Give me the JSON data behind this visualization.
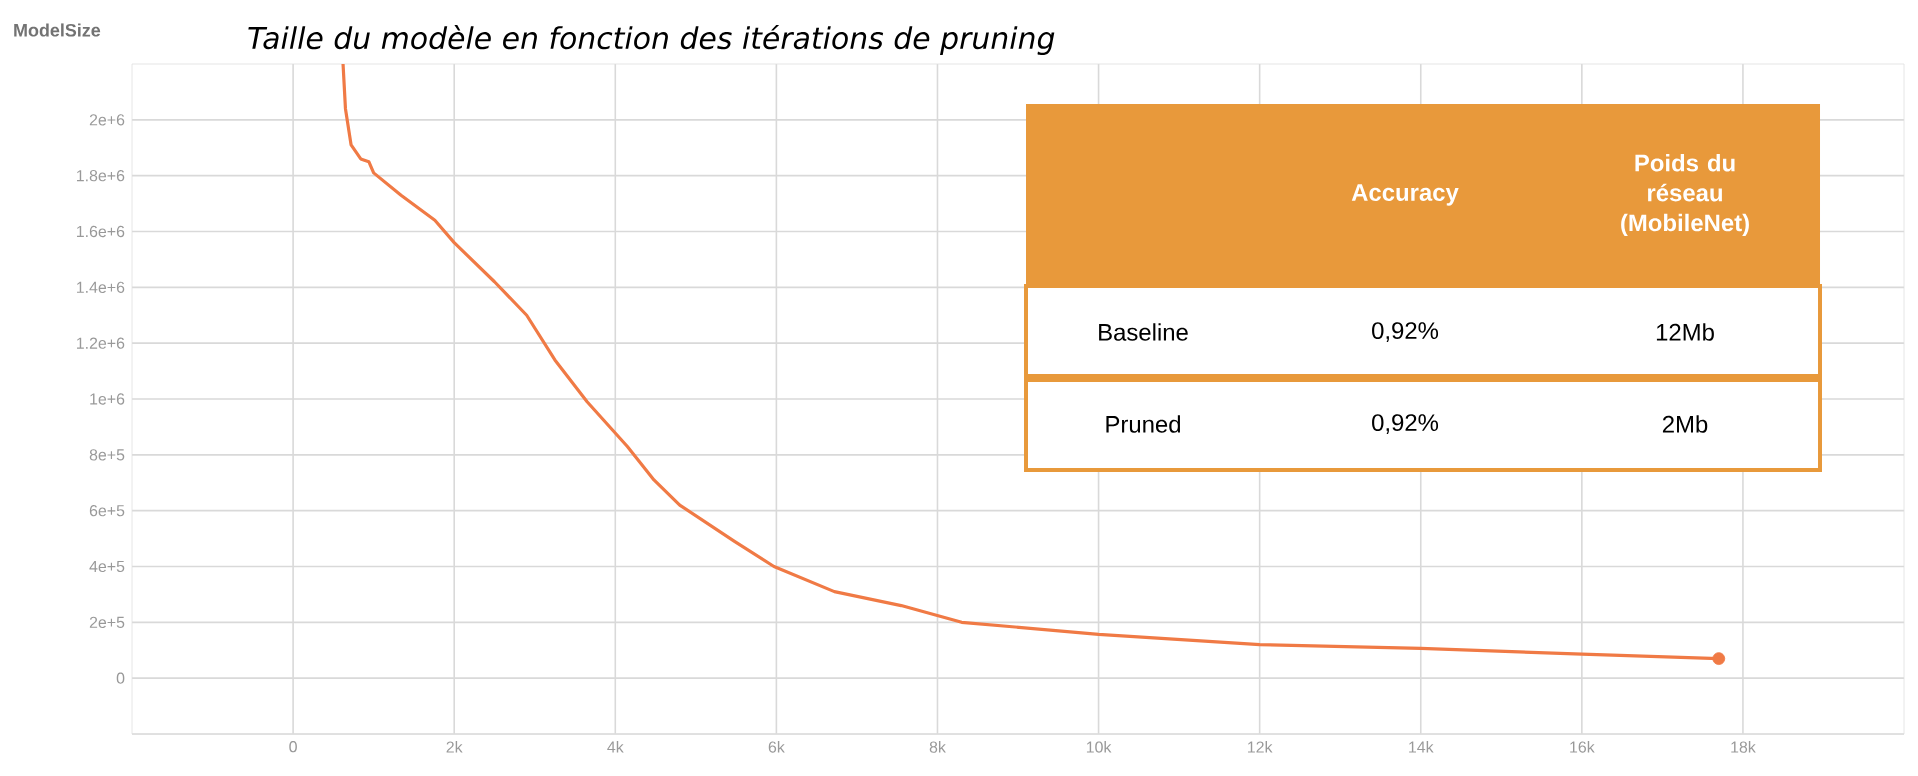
{
  "chart_data": {
    "type": "line",
    "title": "Taille du modèle en fonction des itérations de pruning",
    "ylabel": "ModelSize",
    "xlim": [
      -2000,
      20000
    ],
    "ylim": [
      -200000,
      2200000
    ],
    "xticks": [
      0,
      {
        "value": 2000,
        "label": "2k"
      },
      {
        "value": 4000,
        "label": "4k"
      },
      {
        "value": 6000,
        "label": "6k"
      },
      {
        "value": 8000,
        "label": "8k"
      },
      {
        "value": 10000,
        "label": "10k"
      },
      {
        "value": 12000,
        "label": "12k"
      },
      {
        "value": 14000,
        "label": "14k"
      },
      {
        "value": 16000,
        "label": "16k"
      },
      {
        "value": 18000,
        "label": "18k"
      }
    ],
    "yticks": [
      {
        "value": -200000,
        "label": null
      },
      0,
      {
        "value": 200000,
        "label": "2e+5"
      },
      {
        "value": 400000,
        "label": "4e+5"
      },
      {
        "value": 600000,
        "label": "6e+5"
      },
      {
        "value": 800000,
        "label": "8e+5"
      },
      {
        "value": 1000000,
        "label": "1e+6"
      },
      {
        "value": 1200000,
        "label": "1.2e+6"
      },
      {
        "value": 1400000,
        "label": "1.4e+6"
      },
      {
        "value": 1600000,
        "label": "1.6e+6"
      },
      {
        "value": 1800000,
        "label": "1.8e+6"
      },
      {
        "value": 2000000,
        "label": "2e+6"
      }
    ],
    "grid": true,
    "series": [
      {
        "color": "#f07a45",
        "marker": "none",
        "x": [
          620,
          650,
          720,
          840,
          940,
          1000,
          1340,
          1760,
          2000,
          2500,
          2900,
          3250,
          3650,
          4150,
          4480,
          4800,
          5480,
          5970,
          6720,
          7550,
          8300,
          10000,
          12000,
          14000,
          16000,
          17700
        ],
        "values": [
          2200000,
          2040000,
          1910000,
          1860000,
          1850000,
          1810000,
          1730000,
          1640000,
          1560000,
          1420000,
          1300000,
          1140000,
          990000,
          830000,
          710000,
          620000,
          490000,
          400000,
          310000,
          260000,
          200000,
          157000,
          120000,
          107000,
          86000,
          70000
        ]
      },
      {
        "type": "scatter",
        "color": "#f07a45",
        "marker": "circle",
        "x": [
          17700
        ],
        "values": [
          70000
        ]
      }
    ],
    "annotations": [
      "Accuracy",
      "Poids du réseau (MobileNet)",
      "Baseline",
      "0,92%",
      "12Mb",
      "Pruned",
      "0,92%",
      "2Mb"
    ]
  }
}
